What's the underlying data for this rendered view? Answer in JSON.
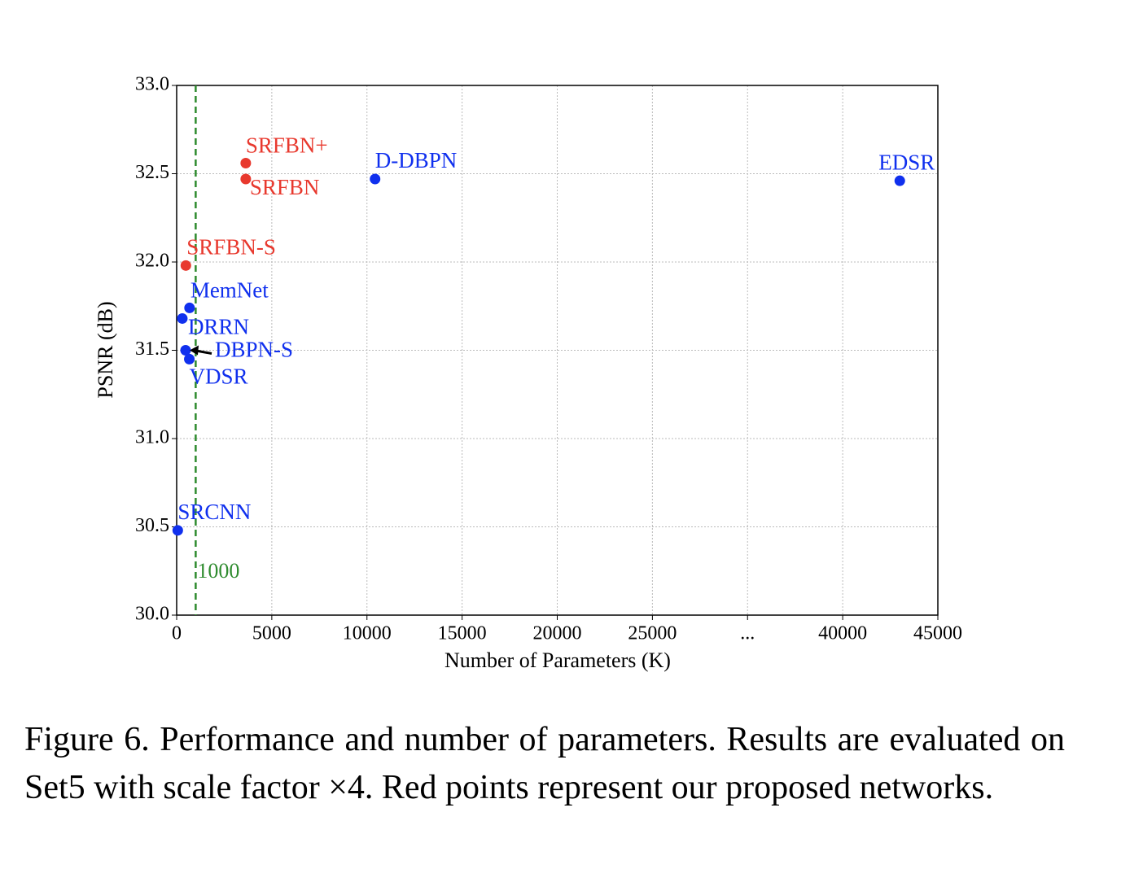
{
  "chart_data": {
    "type": "scatter",
    "x_label": "Number of Parameters (K)",
    "y_label": "PSNR (dB)",
    "xlim": [
      0,
      40000
    ],
    "ylim": [
      30,
      33
    ],
    "xticks": [
      0,
      5000,
      10000,
      15000,
      20000,
      25000,
      {
        "value": 30000,
        "label": "..."
      },
      {
        "value": 35000,
        "label": "40000"
      },
      {
        "value": 40000,
        "label": "45000"
      }
    ],
    "yticks": [
      {
        "value": 30,
        "label": "30.0"
      },
      {
        "value": 30.5,
        "label": "30.5"
      },
      {
        "value": 31,
        "label": "31.0"
      },
      {
        "value": 31.5,
        "label": "31.5"
      },
      {
        "value": 32,
        "label": "32.0"
      },
      {
        "value": 32.5,
        "label": "32.5"
      },
      {
        "value": 33,
        "label": "33.0"
      }
    ],
    "grid": true,
    "points": [
      {
        "label": "SRFBN+",
        "x": 3631,
        "y": 32.56,
        "color": "#e8392e"
      },
      {
        "label": "SRFBN",
        "x": 3631,
        "y": 32.47,
        "color": "#e8392e"
      },
      {
        "label": "D-DBPN",
        "x": 10426,
        "y": 32.47,
        "color": "#1030ee"
      },
      {
        "label": "EDSR",
        "x": 38000,
        "y": 32.46,
        "color": "#1030ee"
      },
      {
        "label": "SRFBN-S",
        "x": 483,
        "y": 31.98,
        "color": "#e8392e"
      },
      {
        "label": "MemNet",
        "x": 677,
        "y": 31.74,
        "color": "#1030ee"
      },
      {
        "label": "DRRN",
        "x": 297,
        "y": 31.68,
        "color": "#1030ee"
      },
      {
        "label": "DBPN-S",
        "x": 470,
        "y": 31.5,
        "color": "#1030ee"
      },
      {
        "label": "VDSR",
        "x": 665,
        "y": 31.45,
        "color": "#1030ee"
      },
      {
        "label": "SRCNN",
        "x": 57,
        "y": 30.48,
        "color": "#1030ee"
      }
    ],
    "vline": {
      "x": 1000,
      "color": "#2e8b2e"
    },
    "caption": "Figure 6. Performance and number of parameters.  Results are evaluated on Set5 with scale factor ×4. Red points represent our proposed networks."
  }
}
